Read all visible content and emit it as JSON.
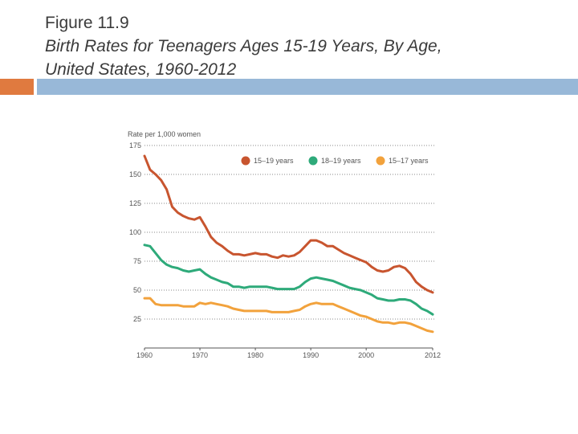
{
  "slide": {
    "figure_label": "Figure 11.9",
    "subtitle_line1": "Birth Rates for Teenagers Ages 15-19 Years, By Age,",
    "subtitle_line2": "United States, 1960-2012"
  },
  "colors": {
    "accent_left": "#e07a3f",
    "accent_right": "#98b8d8",
    "text": "#3b3b3b",
    "axis_text": "#555555",
    "grid": "#888888"
  },
  "chart_data": {
    "type": "line",
    "ylabel": "Rate per 1,000 women",
    "ylim": [
      0,
      175
    ],
    "yticks": [
      25,
      50,
      75,
      100,
      125,
      150,
      175
    ],
    "xlim": [
      1960,
      2012
    ],
    "xticks": [
      1960,
      1970,
      1980,
      1990,
      2000,
      2012
    ],
    "grid": "horizontal dotted",
    "legend_position": "top",
    "series": [
      {
        "name": "15–19 years",
        "color": "#c8552f",
        "points": [
          [
            1960,
            166
          ],
          [
            1961,
            154
          ],
          [
            1962,
            150
          ],
          [
            1963,
            145
          ],
          [
            1964,
            137
          ],
          [
            1965,
            122
          ],
          [
            1966,
            117
          ],
          [
            1967,
            114
          ],
          [
            1968,
            112
          ],
          [
            1969,
            111
          ],
          [
            1970,
            113
          ],
          [
            1971,
            105
          ],
          [
            1972,
            96
          ],
          [
            1973,
            91
          ],
          [
            1974,
            88
          ],
          [
            1975,
            84
          ],
          [
            1976,
            81
          ],
          [
            1977,
            81
          ],
          [
            1978,
            80
          ],
          [
            1979,
            81
          ],
          [
            1980,
            82
          ],
          [
            1981,
            81
          ],
          [
            1982,
            81
          ],
          [
            1983,
            79
          ],
          [
            1984,
            78
          ],
          [
            1985,
            80
          ],
          [
            1986,
            79
          ],
          [
            1987,
            80
          ],
          [
            1988,
            83
          ],
          [
            1989,
            88
          ],
          [
            1990,
            93
          ],
          [
            1991,
            93
          ],
          [
            1992,
            91
          ],
          [
            1993,
            88
          ],
          [
            1994,
            88
          ],
          [
            1995,
            85
          ],
          [
            1996,
            82
          ],
          [
            1997,
            80
          ],
          [
            1998,
            78
          ],
          [
            1999,
            76
          ],
          [
            2000,
            74
          ],
          [
            2001,
            70
          ],
          [
            2002,
            67
          ],
          [
            2003,
            66
          ],
          [
            2004,
            67
          ],
          [
            2005,
            70
          ],
          [
            2006,
            71
          ],
          [
            2007,
            69
          ],
          [
            2008,
            64
          ],
          [
            2009,
            57
          ],
          [
            2010,
            53
          ],
          [
            2011,
            50
          ],
          [
            2012,
            48
          ]
        ]
      },
      {
        "name": "18–19 years",
        "color": "#2eaa7a",
        "points": [
          [
            1960,
            89
          ],
          [
            1961,
            88
          ],
          [
            1962,
            82
          ],
          [
            1963,
            76
          ],
          [
            1964,
            72
          ],
          [
            1965,
            70
          ],
          [
            1966,
            69
          ],
          [
            1967,
            67
          ],
          [
            1968,
            66
          ],
          [
            1969,
            67
          ],
          [
            1970,
            68
          ],
          [
            1971,
            64
          ],
          [
            1972,
            61
          ],
          [
            1973,
            59
          ],
          [
            1974,
            57
          ],
          [
            1975,
            56
          ],
          [
            1976,
            53
          ],
          [
            1977,
            53
          ],
          [
            1978,
            52
          ],
          [
            1979,
            53
          ],
          [
            1980,
            53
          ],
          [
            1981,
            53
          ],
          [
            1982,
            53
          ],
          [
            1983,
            52
          ],
          [
            1984,
            51
          ],
          [
            1985,
            51
          ],
          [
            1986,
            51
          ],
          [
            1987,
            51
          ],
          [
            1988,
            53
          ],
          [
            1989,
            57
          ],
          [
            1990,
            60
          ],
          [
            1991,
            61
          ],
          [
            1992,
            60
          ],
          [
            1993,
            59
          ],
          [
            1994,
            58
          ],
          [
            1995,
            56
          ],
          [
            1996,
            54
          ],
          [
            1997,
            52
          ],
          [
            1998,
            51
          ],
          [
            1999,
            50
          ],
          [
            2000,
            48
          ],
          [
            2001,
            46
          ],
          [
            2002,
            43
          ],
          [
            2003,
            42
          ],
          [
            2004,
            41
          ],
          [
            2005,
            41
          ],
          [
            2006,
            42
          ],
          [
            2007,
            42
          ],
          [
            2008,
            41
          ],
          [
            2009,
            38
          ],
          [
            2010,
            34
          ],
          [
            2011,
            32
          ],
          [
            2012,
            29
          ]
        ]
      },
      {
        "name": "15–17 years",
        "color": "#f2a23c",
        "points": [
          [
            1960,
            43
          ],
          [
            1961,
            43
          ],
          [
            1962,
            38
          ],
          [
            1963,
            37
          ],
          [
            1964,
            37
          ],
          [
            1965,
            37
          ],
          [
            1966,
            37
          ],
          [
            1967,
            36
          ],
          [
            1968,
            36
          ],
          [
            1969,
            36
          ],
          [
            1970,
            39
          ],
          [
            1971,
            38
          ],
          [
            1972,
            39
          ],
          [
            1973,
            38
          ],
          [
            1974,
            37
          ],
          [
            1975,
            36
          ],
          [
            1976,
            34
          ],
          [
            1977,
            33
          ],
          [
            1978,
            32
          ],
          [
            1979,
            32
          ],
          [
            1980,
            32
          ],
          [
            1981,
            32
          ],
          [
            1982,
            32
          ],
          [
            1983,
            31
          ],
          [
            1984,
            31
          ],
          [
            1985,
            31
          ],
          [
            1986,
            31
          ],
          [
            1987,
            32
          ],
          [
            1988,
            33
          ],
          [
            1989,
            36
          ],
          [
            1990,
            38
          ],
          [
            1991,
            39
          ],
          [
            1992,
            38
          ],
          [
            1993,
            38
          ],
          [
            1994,
            38
          ],
          [
            1995,
            36
          ],
          [
            1996,
            34
          ],
          [
            1997,
            32
          ],
          [
            1998,
            30
          ],
          [
            1999,
            28
          ],
          [
            2000,
            27
          ],
          [
            2001,
            25
          ],
          [
            2002,
            23
          ],
          [
            2003,
            22
          ],
          [
            2004,
            22
          ],
          [
            2005,
            21
          ],
          [
            2006,
            22
          ],
          [
            2007,
            22
          ],
          [
            2008,
            21
          ],
          [
            2009,
            19
          ],
          [
            2010,
            17
          ],
          [
            2011,
            15
          ],
          [
            2012,
            14
          ]
        ]
      }
    ]
  }
}
